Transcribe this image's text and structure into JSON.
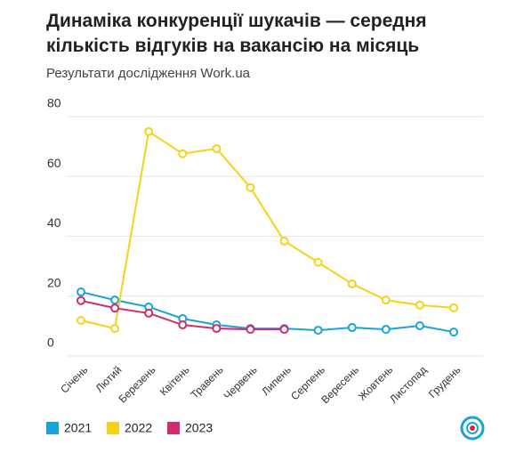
{
  "chart_data": {
    "type": "line",
    "title": [
      "Динаміка конкуренції шукачів — середня",
      "кількість відгуків на вакансію на місяць"
    ],
    "subtitle": "Результати дослідження Work.ua",
    "categories": [
      "Січень",
      "Лютий",
      "Березень",
      "Квітень",
      "Травень",
      "Червень",
      "Липень",
      "Серпень",
      "Вересень",
      "Жовтень",
      "Листопад",
      "Грудень"
    ],
    "series": [
      {
        "name": "2021",
        "color": "#1aa3db",
        "values": [
          21.4,
          18.7,
          16.4,
          12.5,
          10.4,
          9.2,
          9.2,
          8.6,
          9.5,
          8.9,
          10.1,
          8.0
        ]
      },
      {
        "name": "2022",
        "color": "#f5d31a",
        "values": [
          11.9,
          9.2,
          75.0,
          67.6,
          69.3,
          56.3,
          38.4,
          31.3,
          24.1,
          18.7,
          17.0,
          16.1
        ]
      },
      {
        "name": "2023",
        "color": "#d02c6e",
        "values": [
          18.5,
          16.0,
          14.3,
          10.4,
          9.2,
          8.9,
          8.9,
          null,
          null,
          null,
          null,
          null
        ]
      }
    ],
    "ylim": [
      0,
      80
    ],
    "yticks": [
      0,
      20,
      40,
      60,
      80
    ],
    "grid": true,
    "legend": "bottom-left"
  }
}
